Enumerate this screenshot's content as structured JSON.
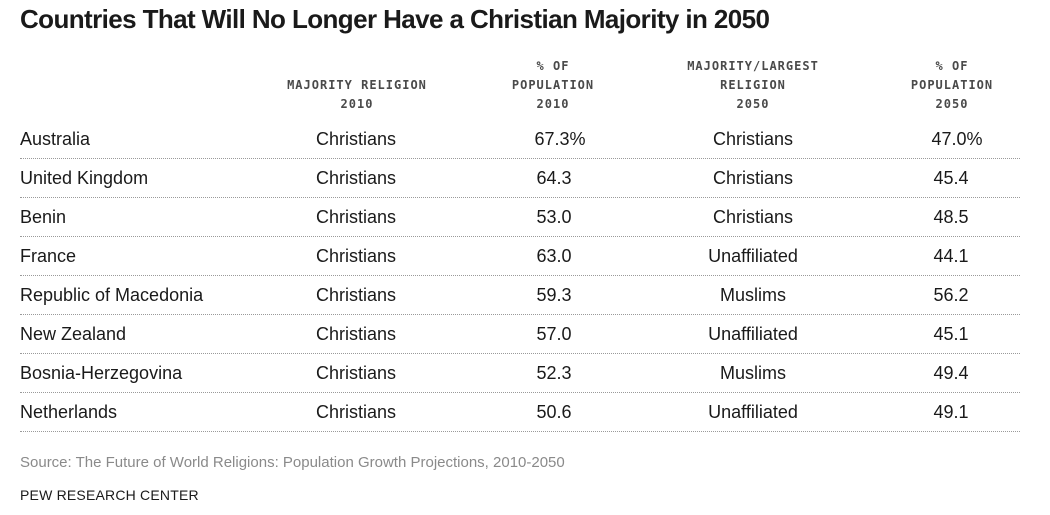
{
  "chart_data": {
    "type": "table",
    "title": "Countries That Will No Longer Have a Christian Majority in 2050",
    "columns": [
      {
        "lines": [
          "MAJORITY RELIGION",
          "2010"
        ]
      },
      {
        "lines": [
          "% OF",
          "POPULATION",
          "2010"
        ]
      },
      {
        "lines": [
          "MAJORITY/LARGEST",
          "RELIGION",
          "2050"
        ]
      },
      {
        "lines": [
          "% OF",
          "POPULATION",
          "2050"
        ]
      }
    ],
    "rows": [
      {
        "country": "Australia",
        "religion_2010": "Christians",
        "pct_2010": "67.3%",
        "religion_2050": "Christians",
        "pct_2050": "47.0%"
      },
      {
        "country": "United Kingdom",
        "religion_2010": "Christians",
        "pct_2010": "64.3",
        "religion_2050": "Christians",
        "pct_2050": "45.4"
      },
      {
        "country": "Benin",
        "religion_2010": "Christians",
        "pct_2010": "53.0",
        "religion_2050": "Christians",
        "pct_2050": "48.5"
      },
      {
        "country": "France",
        "religion_2010": "Christians",
        "pct_2010": "63.0",
        "religion_2050": "Unaffiliated",
        "pct_2050": "44.1"
      },
      {
        "country": "Republic of Macedonia",
        "religion_2010": "Christians",
        "pct_2010": "59.3",
        "religion_2050": "Muslims",
        "pct_2050": "56.2"
      },
      {
        "country": "New Zealand",
        "religion_2010": "Christians",
        "pct_2010": "57.0",
        "religion_2050": "Unaffiliated",
        "pct_2050": "45.1"
      },
      {
        "country": "Bosnia-Herzegovina",
        "religion_2010": "Christians",
        "pct_2010": "52.3",
        "religion_2050": "Muslims",
        "pct_2050": "49.4"
      },
      {
        "country": "Netherlands",
        "religion_2010": "Christians",
        "pct_2010": "50.6",
        "religion_2050": "Unaffiliated",
        "pct_2050": "49.1"
      }
    ],
    "source": "Source: The Future of World Religions: Population Growth Projections, 2010-2050",
    "footer": "PEW RESEARCH CENTER"
  }
}
